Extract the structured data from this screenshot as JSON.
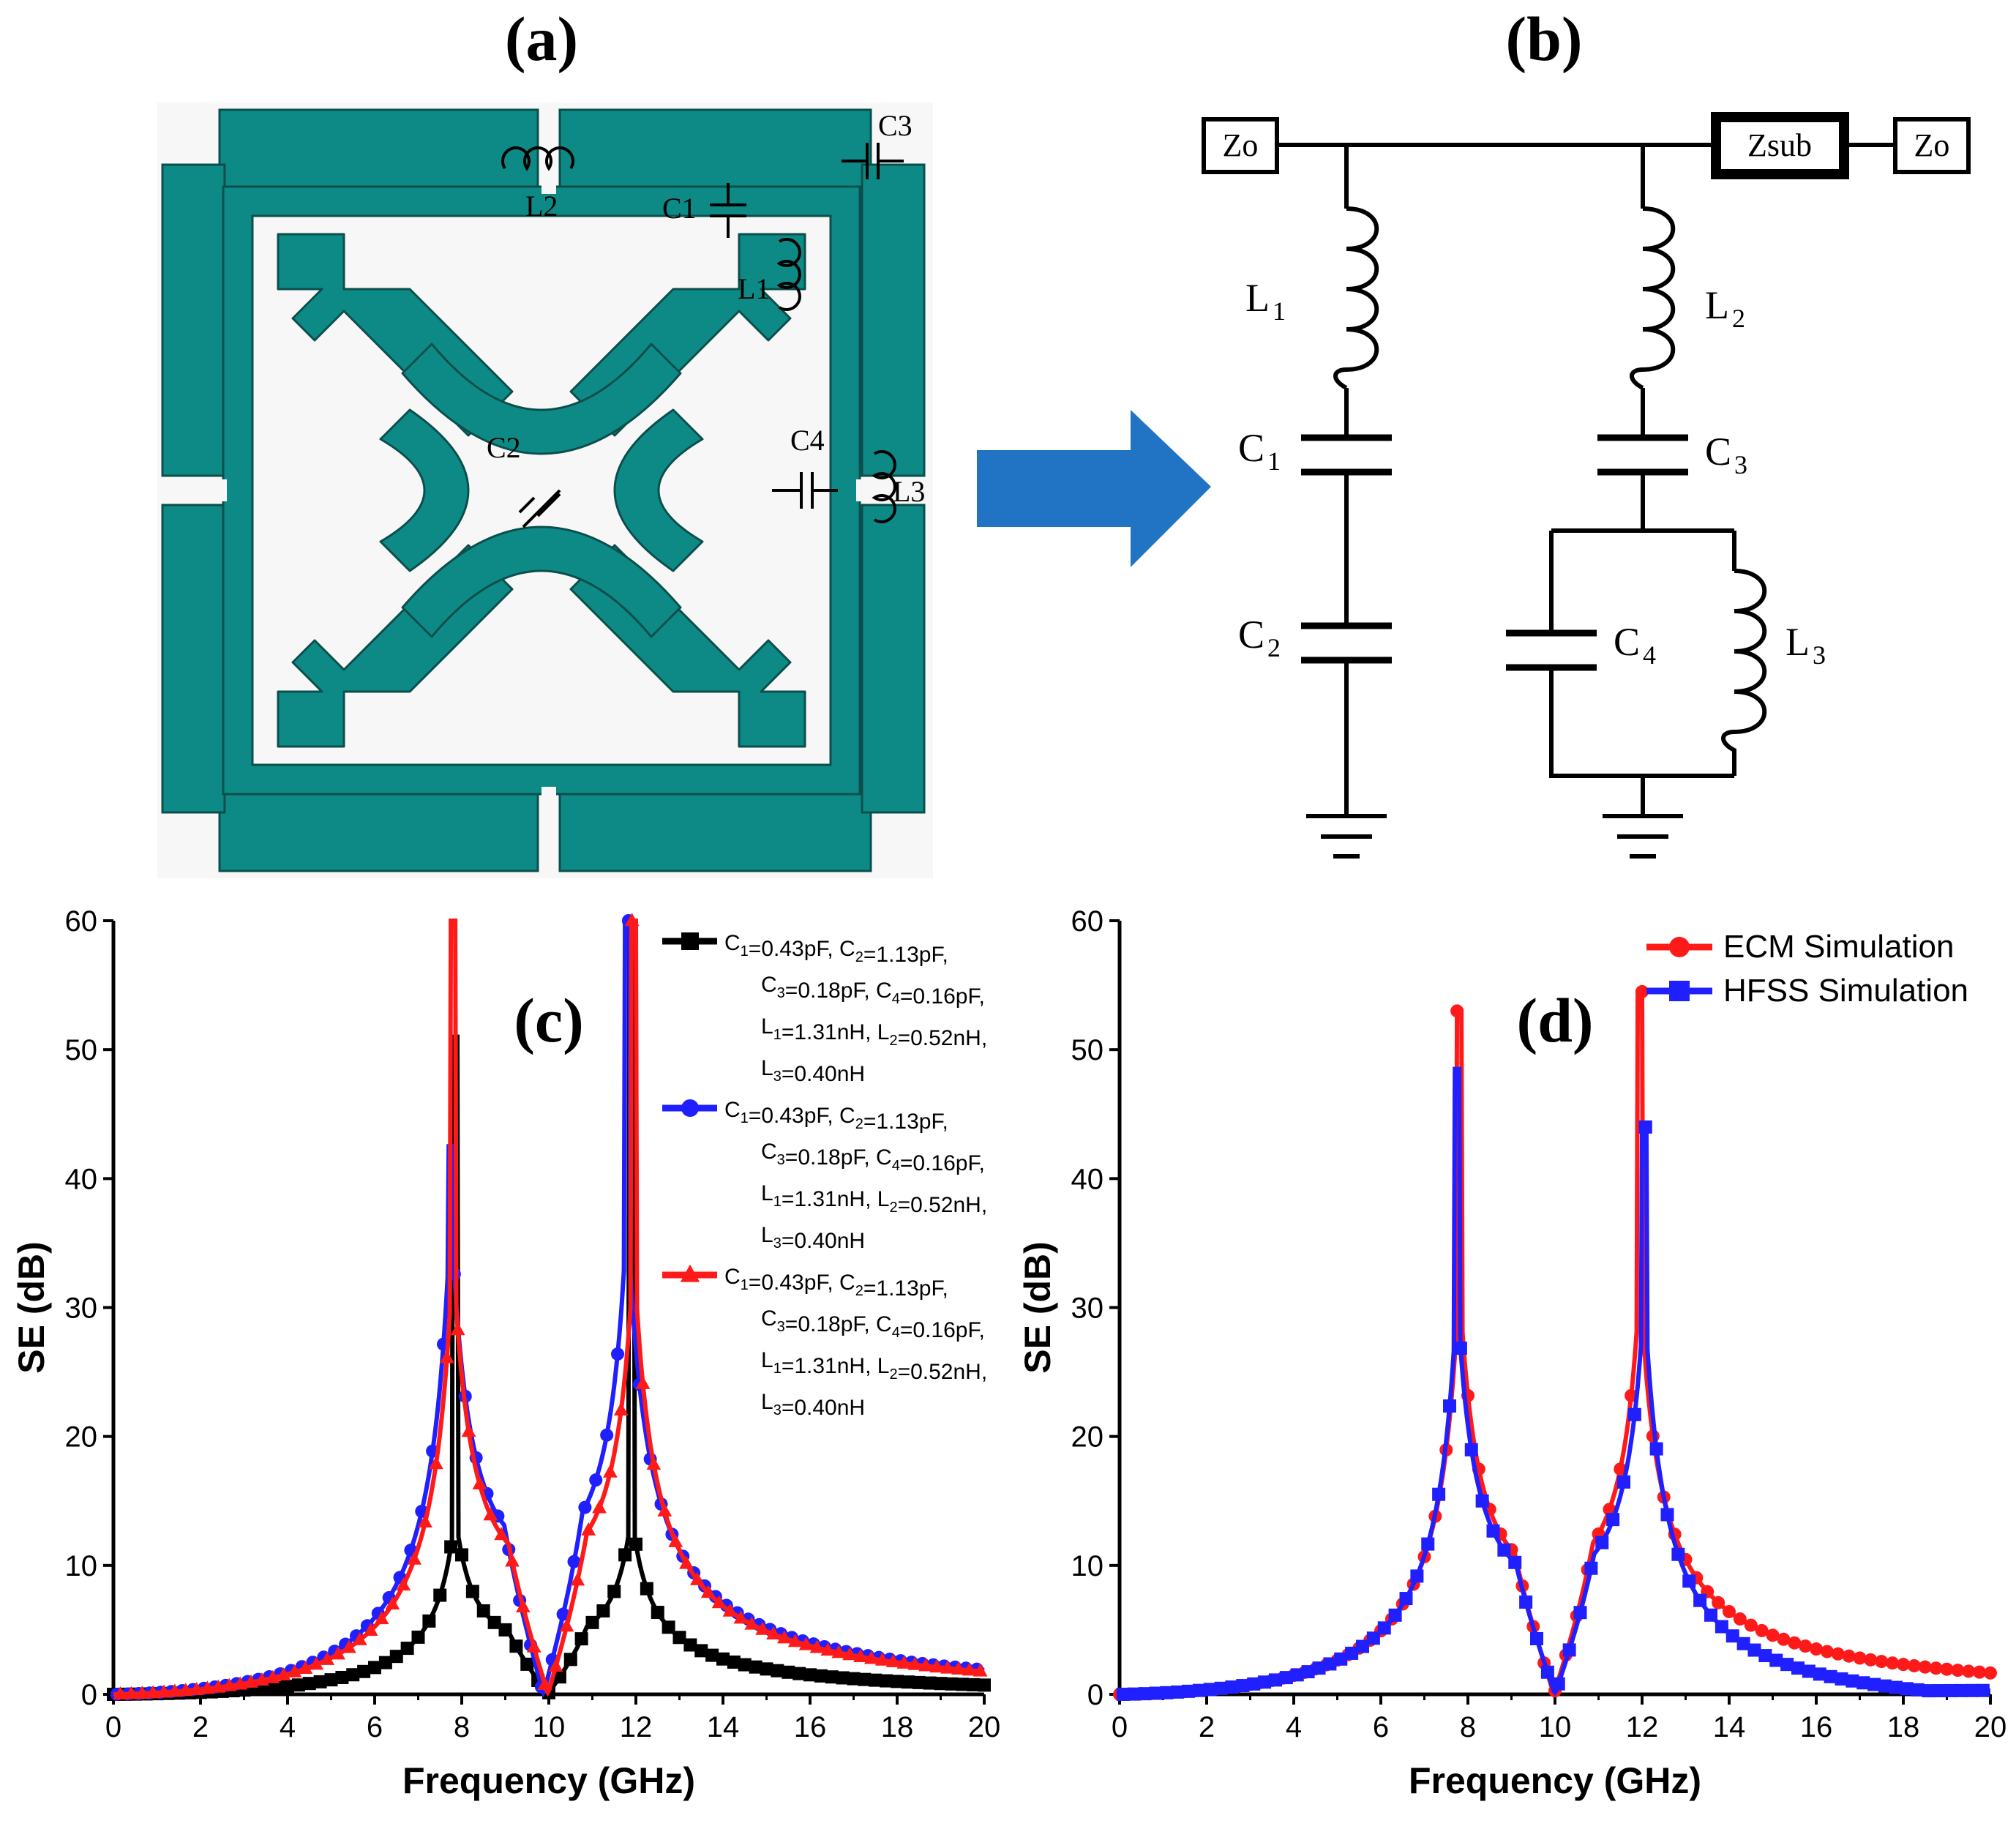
{
  "panels": {
    "a": {
      "label": "(a)",
      "components": {
        "L1": "L1",
        "L2": "L2",
        "L3": "L3",
        "C1": "C1",
        "C2": "C2",
        "C3": "C3",
        "C4": "C4"
      }
    },
    "b": {
      "label": "(b)",
      "zo_left": "Zo",
      "zsub": "Zsub",
      "zo_right": "Zo",
      "L1": {
        "base": "L",
        "sub": "1"
      },
      "C1": {
        "base": "C",
        "sub": "1"
      },
      "C2": {
        "base": "C",
        "sub": "2"
      },
      "L2": {
        "base": "L",
        "sub": "2"
      },
      "C3": {
        "base": "C",
        "sub": "3"
      },
      "C4": {
        "base": "C",
        "sub": "4"
      },
      "L3": {
        "base": "L",
        "sub": "3"
      }
    },
    "c": {
      "label": "(c)"
    },
    "d": {
      "label": "(d)"
    }
  },
  "colors": {
    "fss_fill": "#0e8a86",
    "arrow": "#2173c4",
    "black": "#000000",
    "blue": "#1f1fff",
    "red": "#ff1a1a"
  },
  "chart_data": [
    {
      "type": "line",
      "panel": "(c)",
      "xlabel": "Frequency (GHz)",
      "ylabel": "SE (dB)",
      "xlim": [
        0,
        20
      ],
      "ylim": [
        0,
        60
      ],
      "xticks": [
        "0",
        "2",
        "4",
        "6",
        "8",
        "10",
        "12",
        "14",
        "16",
        "18",
        "20"
      ],
      "yticks": [
        "0",
        "10",
        "20",
        "30",
        "40",
        "50",
        "60"
      ],
      "legend_position": "top-right",
      "series": [
        {
          "name": "black",
          "color": "#000000",
          "marker": "square",
          "legend": [
            [
              {
                "t": "C"
              },
              {
                "s": "1"
              },
              {
                "t": "=0.43pF, C"
              },
              {
                "s": "2"
              },
              {
                "t": "=1.13pF,"
              }
            ],
            [
              {
                "t": "C"
              },
              {
                "s": "3"
              },
              {
                "t": "=0.18pF, C"
              },
              {
                "s": "4"
              },
              {
                "t": "=0.16pF,"
              }
            ],
            [
              {
                "t": "L"
              },
              {
                "s": "1"
              },
              {
                "t": "=1.31nH, L"
              },
              {
                "s": "2"
              },
              {
                "t": "=0.52nH,"
              }
            ],
            [
              {
                "t": "L"
              },
              {
                "s": "3"
              },
              {
                "t": "=0.40nH"
              }
            ]
          ],
          "f1": 7.85,
          "f2": 11.9,
          "peak1": 51,
          "peak2": 60,
          "gain": 13,
          "floor": 0.25
        },
        {
          "name": "blue",
          "color": "#1f1fff",
          "marker": "circle",
          "legend": [
            [
              {
                "t": "C"
              },
              {
                "s": "1"
              },
              {
                "t": "=0.43pF, C"
              },
              {
                "s": "2"
              },
              {
                "t": "=1.13pF,"
              }
            ],
            [
              {
                "t": "C"
              },
              {
                "s": "3"
              },
              {
                "t": "=0.18pF, C"
              },
              {
                "s": "4"
              },
              {
                "t": "=0.16pF,"
              }
            ],
            [
              {
                "t": "L"
              },
              {
                "s": "1"
              },
              {
                "t": "=1.31nH, L"
              },
              {
                "s": "2"
              },
              {
                "t": "=0.52nH,"
              }
            ],
            [
              {
                "t": "L"
              },
              {
                "s": "3"
              },
              {
                "t": "=0.40nH"
              }
            ]
          ],
          "f1": 7.75,
          "f2": 11.8,
          "peak1": 42.5,
          "peak2": 60,
          "gain": 35,
          "floor": 0.3
        },
        {
          "name": "red",
          "color": "#ff1a1a",
          "marker": "triangle",
          "legend": [
            [
              {
                "t": "C"
              },
              {
                "s": "1"
              },
              {
                "t": "=0.43pF, C"
              },
              {
                "s": "2"
              },
              {
                "t": "=1.13pF,"
              }
            ],
            [
              {
                "t": "C"
              },
              {
                "s": "3"
              },
              {
                "t": "=0.18pF, C"
              },
              {
                "s": "4"
              },
              {
                "t": "=0.16pF,"
              }
            ],
            [
              {
                "t": "L"
              },
              {
                "s": "1"
              },
              {
                "t": "=1.31nH, L"
              },
              {
                "s": "2"
              },
              {
                "t": "=0.52nH,"
              }
            ],
            [
              {
                "t": "L"
              },
              {
                "s": "3"
              },
              {
                "t": "=0.40nH"
              }
            ]
          ],
          "f1": 7.8,
          "f2": 11.95,
          "peak1": 60,
          "peak2": 60,
          "gain": 32,
          "floor": 0.3
        }
      ]
    },
    {
      "type": "line",
      "panel": "(d)",
      "xlabel": "Frequency (GHz)",
      "ylabel": "SE (dB)",
      "xlim": [
        0,
        20
      ],
      "ylim": [
        0,
        60
      ],
      "xticks": [
        "0",
        "2",
        "4",
        "6",
        "8",
        "10",
        "12",
        "14",
        "16",
        "18",
        "20"
      ],
      "yticks": [
        "0",
        "10",
        "20",
        "30",
        "40",
        "50",
        "60"
      ],
      "legend_position": "top-right",
      "series": [
        {
          "name": "ECM Simulation",
          "color": "#ff1a1a",
          "marker": "circle",
          "f1": 7.8,
          "f2": 11.95,
          "peak1": 53,
          "peak2": 54.5,
          "gain": 30,
          "floor": 0.3
        },
        {
          "name": "HFSS Simulation",
          "color": "#1f1fff",
          "marker": "square",
          "f1": 7.75,
          "f2": 12.05,
          "peak1": 48.5,
          "peak2": 44,
          "gain": 29,
          "floor": 0.3,
          "tail": "fall"
        }
      ]
    }
  ]
}
